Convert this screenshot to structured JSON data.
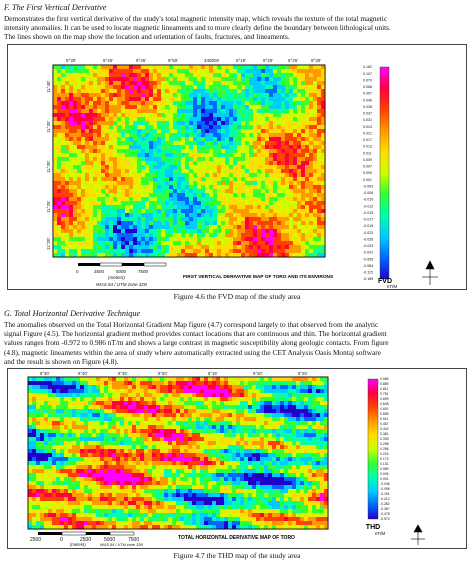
{
  "sections": [
    {
      "heading": "F.   The First Vertical Derivative",
      "lines": [
        "Demonstrates the first vertical derivative of the study's total magnetic intensity map, which reveals the texture of the total magnetic",
        "intensity anomalies. It can be used to locate magnetic lineaments and to more clearly define the boundary between lithological units.",
        "The lines shown on the map show the location and orientation of faults, fractures, and lineaments."
      ]
    },
    {
      "heading": "G.   Total Horizontal Derivative Technique",
      "lines": [
        " The anomalies observed on the Total Horizontal Gradient Map figure (4.7) correspond largely to that observed from the analytic",
        "signal Figure (4.5). The horizontal gradient method provides contact locations that are continuous and thin. The horizontal gradient",
        "values ranges from -0.972 to 0.986 nT/m and shows a large contrast in magnetic susceptibility along geologic contacts. From figure",
        "(4.8), magnetic lineaments within the area of study where automatically extracted using the CET Analysis Oasis Montaj software",
        "and the result is shown on Figure (4.8)."
      ]
    }
  ],
  "figures": [
    {
      "caption": "Figure 4.6 the FVD map of the study area",
      "map_title": "FIRST VERTICAL DERIVATIVE MAP OF TORO AND ITS ENVIRONS",
      "legend_title": "FVD",
      "legend_unit": "nT/M",
      "legend_values": [
        "0.162",
        "0.107",
        "0.079",
        "0.066",
        "0.057",
        "0.046",
        "0.038",
        "0.037",
        "0.031",
        "0.024",
        "0.021",
        "0.017",
        "0.013",
        "0.011",
        "0.009",
        "0.007",
        "0.005",
        "0.001",
        "-0.003",
        "-0.006",
        "-0.010",
        "-0.012",
        "-0.015",
        "-0.017",
        "-0.019",
        "-0.023",
        "-0.026",
        "-0.033",
        "-0.041",
        "-0.059",
        "-0.084",
        "-0.115",
        "-0.189"
      ],
      "top_ticks": [
        "9°30'",
        "9°40'",
        "9°45'",
        "9°50'",
        "340000",
        "9°15'",
        "9°20'",
        "9°25'",
        "9°30'"
      ],
      "left_ticks": [
        "11°40'",
        "11°35'",
        "11°30'",
        "11°25'",
        "11°20'"
      ],
      "scale_labels": [
        "0",
        "2500",
        "5000",
        "7500"
      ],
      "scale_unit": "(meters)",
      "projection": "WGS 84 / UTM zone 32N",
      "colors": [
        "#ff00ff",
        "#ff0040",
        "#ff4000",
        "#ff9900",
        "#ffdd00",
        "#ccff00",
        "#33ff33",
        "#00ffaa",
        "#00ccff",
        "#0066ff",
        "#2200cc"
      ]
    },
    {
      "caption": "Figure 4.7 the THD map of the study area",
      "map_title": "TOTAL HORIZONTAL DERIVATIVE MAP OF TORO",
      "legend_title": "THD",
      "legend_unit": "nT/M",
      "legend_values": [
        "0.986",
        "0.889",
        "0.811",
        "0.751",
        "0.699",
        "0.648",
        "0.601",
        "0.555",
        "0.511",
        "0.467",
        "0.424",
        "0.381",
        "0.339",
        "0.298",
        "0.256",
        "0.215",
        "0.173",
        "0.131",
        "0.089",
        "0.045",
        "0.001",
        "-0.046",
        "-0.096",
        "-0.151",
        "-0.212",
        "-0.282",
        "-0.367",
        "-0.478",
        "-0.972"
      ],
      "top_ticks": [
        "9°30'",
        "9°40'",
        "9°45'",
        "9°50'",
        "9°15'",
        "9°20'",
        "9°25'"
      ],
      "scale_labels": [
        "2500",
        "0",
        "2500",
        "5000",
        "7500"
      ],
      "scale_unit": "(meters)",
      "projection": "WGS 84 / UTM zone 32N",
      "colors": [
        "#ff00ff",
        "#ff0040",
        "#ff4000",
        "#ff9900",
        "#ffdd00",
        "#ccff00",
        "#33ff33",
        "#00ffaa",
        "#00ccff",
        "#0066ff",
        "#2200cc"
      ]
    }
  ]
}
